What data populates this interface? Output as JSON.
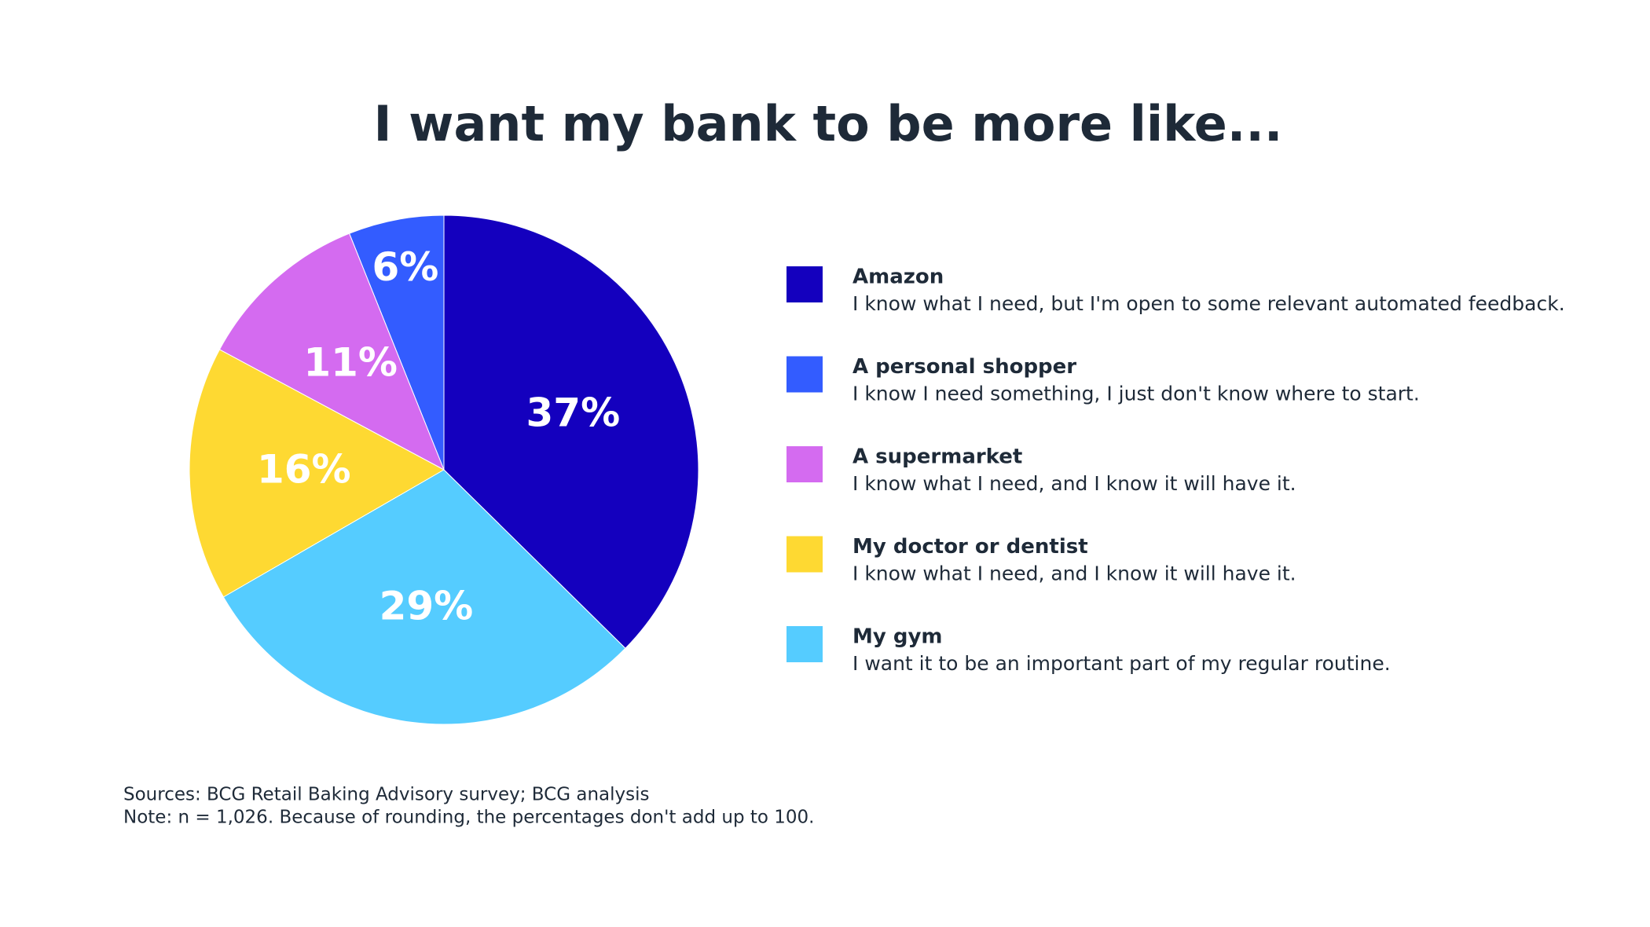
{
  "chart_data": {
    "type": "pie",
    "title": "I want my bank to be more like...",
    "categories": [
      "Amazon",
      "A personal shopper",
      "A supermarket",
      "My doctor or dentist",
      "My gym"
    ],
    "descriptions": [
      "I know what I need, but I'm open to some relevant automated feedback.",
      "I know I need something, I just don't know where to start.",
      "I know what I need, and I know it will have it.",
      "I know what I need, and I know it will have it.",
      "I want it to be an important part of my regular routine."
    ],
    "values": [
      37,
      6,
      11,
      16,
      29
    ],
    "value_labels": [
      "37%",
      "6%",
      "11%",
      "16%",
      "29%"
    ],
    "colors": [
      "#1400be",
      "#335cff",
      "#d46bf0",
      "#fed932",
      "#55ccff"
    ],
    "notes": [
      "Sources: BCG Retail Baking Advisory survey; BCG analysis",
      "Note: n = 1,026. Because of rounding, the percentages don't add up to 100."
    ]
  }
}
